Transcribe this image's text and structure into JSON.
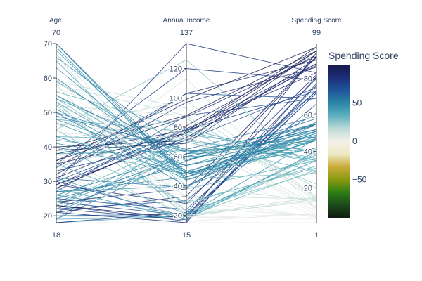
{
  "chart_data": {
    "type": "parallel_coordinates",
    "dimensions": [
      {
        "label": "Age",
        "range": [
          18,
          70
        ],
        "ticks": [
          20,
          30,
          40,
          50,
          60,
          70
        ]
      },
      {
        "label": "Annual Income",
        "range": [
          15,
          137
        ],
        "ticks": [
          20,
          40,
          60,
          80,
          100,
          120
        ]
      },
      {
        "label": "Spending Score",
        "range": [
          1,
          99
        ],
        "ticks": [
          20,
          40,
          60,
          80
        ]
      }
    ],
    "color_dimension": "Spending Score",
    "colorbar": {
      "title": "Spending Score",
      "range": [
        -100,
        100
      ],
      "ticks": [
        -50,
        0,
        50
      ],
      "tick_labels": [
        "−50",
        "0",
        "50"
      ],
      "colorscale": [
        "#0f1c0f",
        "#1d4a1d",
        "#2f7e13",
        "#8a9a10",
        "#c9ad3a",
        "#eee9c4",
        "#f3f1ea",
        "#bcd9d6",
        "#5eb0bd",
        "#2a86a6",
        "#1f559a",
        "#1d2d79",
        "#15184a"
      ]
    },
    "lines": [
      [
        18,
        15,
        1
      ],
      [
        18,
        20,
        38
      ],
      [
        18,
        22,
        80
      ],
      [
        19,
        19,
        39
      ],
      [
        19,
        60,
        52
      ],
      [
        19,
        75,
        40
      ],
      [
        20,
        16,
        6
      ],
      [
        20,
        21,
        66
      ],
      [
        20,
        19,
        35
      ],
      [
        21,
        15,
        81
      ],
      [
        21,
        33,
        92
      ],
      [
        21,
        62,
        48
      ],
      [
        22,
        17,
        76
      ],
      [
        22,
        57,
        55
      ],
      [
        22,
        30,
        73
      ],
      [
        23,
        16,
        77
      ],
      [
        23,
        18,
        94
      ],
      [
        23,
        62,
        41
      ],
      [
        23,
        70,
        29
      ],
      [
        24,
        20,
        72
      ],
      [
        24,
        38,
        92
      ],
      [
        24,
        60,
        52
      ],
      [
        25,
        24,
        73
      ],
      [
        25,
        54,
        52
      ],
      [
        25,
        72,
        34
      ],
      [
        26,
        62,
        55
      ],
      [
        26,
        20,
        47
      ],
      [
        27,
        40,
        47
      ],
      [
        27,
        88,
        69
      ],
      [
        27,
        46,
        51
      ],
      [
        28,
        17,
        40
      ],
      [
        28,
        76,
        87
      ],
      [
        28,
        77,
        97
      ],
      [
        29,
        28,
        82
      ],
      [
        29,
        73,
        88
      ],
      [
        29,
        79,
        83
      ],
      [
        30,
        19,
        72
      ],
      [
        30,
        78,
        73
      ],
      [
        30,
        137,
        83
      ],
      [
        31,
        17,
        40
      ],
      [
        31,
        39,
        61
      ],
      [
        31,
        81,
        93
      ],
      [
        32,
        18,
        6
      ],
      [
        32,
        97,
        86
      ],
      [
        32,
        103,
        69
      ],
      [
        33,
        33,
        4
      ],
      [
        33,
        71,
        75
      ],
      [
        33,
        113,
        8
      ],
      [
        34,
        78,
        22
      ],
      [
        34,
        103,
        90
      ],
      [
        35,
        21,
        35
      ],
      [
        35,
        76,
        95
      ],
      [
        35,
        120,
        79
      ],
      [
        36,
        87,
        92
      ],
      [
        36,
        99,
        97
      ],
      [
        37,
        20,
        13
      ],
      [
        37,
        60,
        4
      ],
      [
        38,
        64,
        42
      ],
      [
        38,
        78,
        88
      ],
      [
        39,
        69,
        91
      ],
      [
        39,
        88,
        95
      ],
      [
        40,
        29,
        31
      ],
      [
        40,
        48,
        42
      ],
      [
        40,
        71,
        95
      ],
      [
        41,
        54,
        47
      ],
      [
        42,
        60,
        40
      ],
      [
        42,
        86,
        20
      ],
      [
        43,
        48,
        50
      ],
      [
        43,
        71,
        35
      ],
      [
        44,
        73,
        7
      ],
      [
        45,
        28,
        32
      ],
      [
        45,
        126,
        28
      ],
      [
        46,
        25,
        5
      ],
      [
        46,
        98,
        15
      ],
      [
        47,
        49,
        42
      ],
      [
        47,
        71,
        9
      ],
      [
        48,
        54,
        46
      ],
      [
        48,
        77,
        36
      ],
      [
        49,
        33,
        14
      ],
      [
        49,
        65,
        59
      ],
      [
        50,
        40,
        55
      ],
      [
        50,
        63,
        54
      ],
      [
        51,
        44,
        50
      ],
      [
        51,
        75,
        10
      ],
      [
        52,
        23,
        29
      ],
      [
        52,
        88,
        13
      ],
      [
        53,
        19,
        30
      ],
      [
        53,
        46,
        46
      ],
      [
        54,
        45,
        28
      ],
      [
        54,
        63,
        46
      ],
      [
        55,
        57,
        58
      ],
      [
        55,
        49,
        42
      ],
      [
        56,
        79,
        35
      ],
      [
        57,
        75,
        5
      ],
      [
        58,
        20,
        15
      ],
      [
        58,
        88,
        15
      ],
      [
        59,
        58,
        51
      ],
      [
        59,
        93,
        14
      ],
      [
        60,
        30,
        4
      ],
      [
        60,
        50,
        49
      ],
      [
        63,
        48,
        51
      ],
      [
        64,
        19,
        3
      ],
      [
        65,
        38,
        35
      ],
      [
        66,
        63,
        48
      ],
      [
        67,
        19,
        14
      ],
      [
        67,
        40,
        13
      ],
      [
        68,
        48,
        48
      ],
      [
        69,
        44,
        46
      ],
      [
        70,
        46,
        56
      ],
      [
        70,
        49,
        55
      ]
    ]
  }
}
